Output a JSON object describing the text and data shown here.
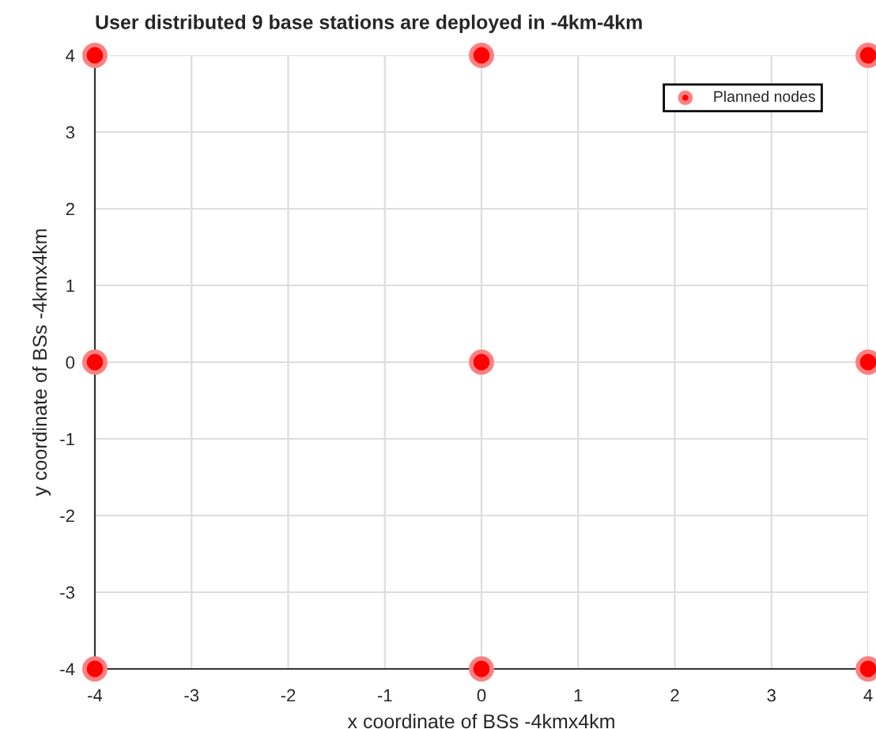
{
  "chart_data": {
    "type": "scatter",
    "title": "User distributed 9 base stations are deployed in -4km-4km",
    "xlabel": "x coordinate of BSs -4kmx4km",
    "ylabel": "y coordinate of BSs -4kmx4km",
    "series": [
      {
        "name": "Planned nodes",
        "color": "#ff0000",
        "x": [
          -4,
          -4,
          -4,
          0,
          0,
          0,
          4,
          4,
          4
        ],
        "values": [
          4,
          0,
          -4,
          4,
          0,
          -4,
          4,
          0,
          -4
        ]
      }
    ],
    "xlim": [
      -4,
      4
    ],
    "ylim": [
      -4,
      4
    ],
    "xticks": [
      -4,
      -3,
      -2,
      -1,
      0,
      1,
      2,
      3,
      4
    ],
    "yticks": [
      -4,
      -3,
      -2,
      -1,
      0,
      1,
      2,
      3,
      4
    ],
    "grid": true,
    "legend": "top right",
    "marker": "circle"
  }
}
